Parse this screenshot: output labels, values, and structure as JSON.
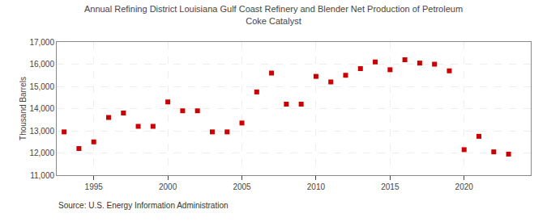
{
  "chart_data": {
    "type": "scatter",
    "title": "Annual Refining District Louisiana Gulf Coast Refinery and Blender Net Production of Petroleum\nCoke Catalyst",
    "ylabel": "Thousand Barrels",
    "annotations": [
      "Source: U.S. Energy Information Administration"
    ],
    "x": [
      1993,
      1994,
      1995,
      1996,
      1997,
      1998,
      1999,
      2000,
      2001,
      2002,
      2003,
      2004,
      2005,
      2006,
      2007,
      2008,
      2009,
      2010,
      2011,
      2012,
      2013,
      2014,
      2015,
      2016,
      2017,
      2018,
      2019,
      2020,
      2021,
      2022,
      2023
    ],
    "values": [
      12950,
      12200,
      12500,
      13600,
      13800,
      13200,
      13200,
      14300,
      13900,
      13900,
      12950,
      12950,
      13350,
      14750,
      15600,
      14200,
      14200,
      15450,
      15200,
      15500,
      15800,
      16100,
      15750,
      16200,
      16050,
      16000,
      15700,
      12150,
      12750,
      12050,
      11950
    ],
    "color": "#cc0000",
    "marker": "square",
    "xlim": [
      1992.5,
      2024.5
    ],
    "xticks": [
      1995,
      2000,
      2005,
      2010,
      2015,
      2020
    ],
    "ylim": [
      11000,
      17000
    ],
    "yticks": [
      {
        "value": 11000,
        "label": "11,000"
      },
      {
        "value": 12000,
        "label": "12,000"
      },
      {
        "value": 13000,
        "label": "13,000"
      },
      {
        "value": 14000,
        "label": "14,000"
      },
      {
        "value": 15000,
        "label": "15,000"
      },
      {
        "value": 16000,
        "label": "16,000"
      },
      {
        "value": 17000,
        "label": "17,000"
      }
    ],
    "grid": true
  }
}
